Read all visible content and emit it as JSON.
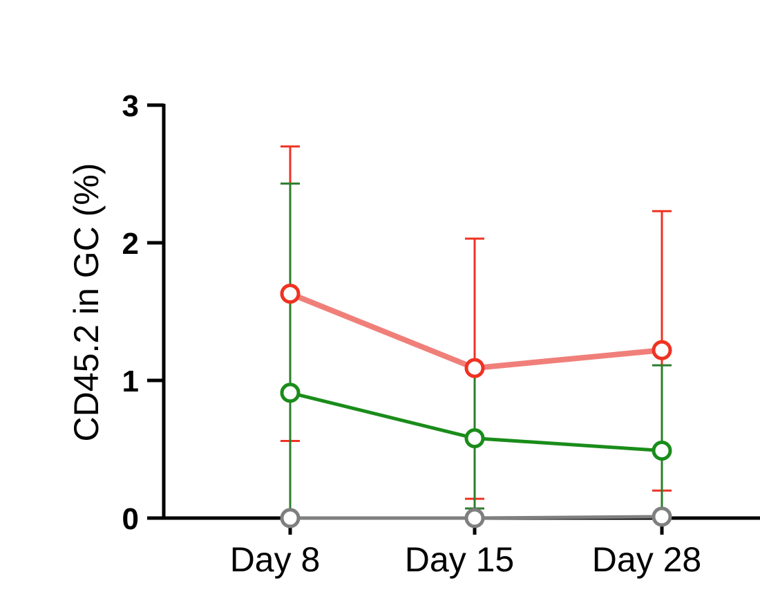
{
  "chart_data": {
    "type": "line",
    "title": "",
    "xlabel": "",
    "ylabel": "CD45.2 in GC (%)",
    "categories": [
      "Day 8",
      "Day 15",
      "Day 28"
    ],
    "ylim": [
      0,
      3
    ],
    "yticks": [
      0,
      1,
      2,
      3
    ],
    "y_tick_labels": [
      "0",
      "1",
      "2",
      "3"
    ],
    "grid": false,
    "legend": "none",
    "series": [
      {
        "name": "red",
        "color": "#f07f7a",
        "marker_color": "#ee3322",
        "error_color": "#ee3322",
        "values": [
          1.63,
          1.09,
          1.22
        ],
        "error_upper": [
          2.7,
          2.03,
          2.23
        ],
        "error_lower": [
          0.56,
          0.14,
          0.2
        ]
      },
      {
        "name": "green",
        "color": "#1a8c1a",
        "marker_color": "#1a8c1a",
        "error_color": "#2d7d2d",
        "values": [
          0.91,
          0.58,
          0.49
        ],
        "error_upper": [
          2.43,
          1.1,
          1.11
        ],
        "error_lower": [
          0.0,
          0.07,
          0.0
        ]
      },
      {
        "name": "gray",
        "color": "#7f7f7f",
        "marker_color": "#7f7f7f",
        "error_color": "#7f7f7f",
        "values": [
          0.0,
          0.0,
          0.01
        ],
        "error_upper": [
          0.0,
          0.0,
          0.01
        ],
        "error_lower": [
          0.0,
          0.0,
          0.01
        ]
      }
    ]
  }
}
